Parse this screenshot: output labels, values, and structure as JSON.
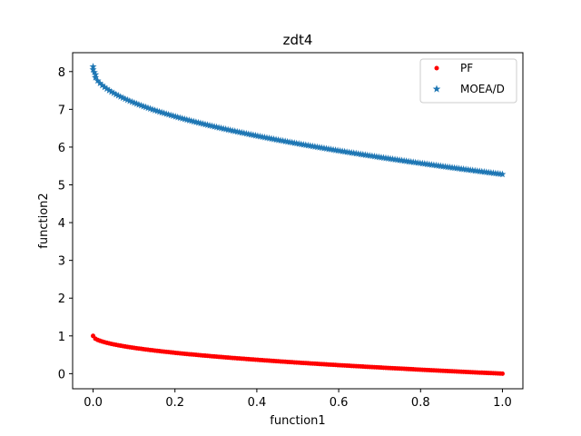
{
  "chart_data": {
    "type": "scatter",
    "title": "zdt4",
    "xlabel": "function1",
    "ylabel": "function2",
    "xlim": [
      -0.05,
      1.05
    ],
    "ylim": [
      -0.4,
      8.5
    ],
    "xticks": [
      "0.0",
      "0.2",
      "0.4",
      "0.6",
      "0.8",
      "1.0"
    ],
    "yticks": [
      "0",
      "1",
      "2",
      "3",
      "4",
      "5",
      "6",
      "7",
      "8"
    ],
    "grid": false,
    "legend_position": "top-right",
    "series": [
      {
        "name": "PF",
        "marker": "dot",
        "color": "#ff0000",
        "formula": "y = 1 - sqrt(x)",
        "x_range": [
          0,
          1
        ],
        "y_range": [
          1,
          0
        ]
      },
      {
        "name": "MOEA/D",
        "marker": "star",
        "color": "#1f77b4",
        "formula": "y = 8.05 - 2.77 * sqrt(x)",
        "x_range": [
          0,
          1
        ],
        "y_range": [
          8.05,
          5.28
        ]
      }
    ]
  }
}
